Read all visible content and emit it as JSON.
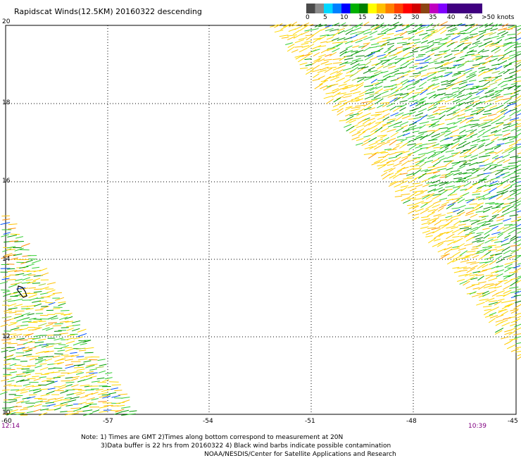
{
  "title": "Rapidscat Winds(12.5KM) 20160322 descending",
  "scale": {
    "labels": [
      "0",
      "5",
      "10",
      "15",
      "20",
      "25",
      "30",
      "35",
      "40",
      "45",
      ">50 knots"
    ],
    "colors": [
      "#4a4a4a",
      "#8c8c8c",
      "#00d8ff",
      "#0080ff",
      "#0000ff",
      "#00b000",
      "#008000",
      "#ffff00",
      "#ffc000",
      "#ff8000",
      "#ff4000",
      "#ff0000",
      "#d00000",
      "#8b4513",
      "#c000c0",
      "#8000ff",
      "#400080"
    ]
  },
  "y_labels": [
    "20",
    "18",
    "16",
    "14",
    "12",
    "10"
  ],
  "x_labels": [
    "-60",
    "-57",
    "-54",
    "-51",
    "-48",
    "-45"
  ],
  "times": {
    "left": "12:14",
    "right": "10:39"
  },
  "notes": {
    "line1": "Note:  1) Times are GMT  2)Times along bottom correspond to measurement at 20N",
    "line2": "3)Data buffer is 22 hrs from 20160322  4) Black wind barbs indicate possible contamination",
    "line3": "NOAA/NESDIS/Center for Satellite Applications and Research"
  },
  "map": {
    "lon_range": [
      -60,
      -45
    ],
    "lat_range": [
      10,
      20
    ],
    "swath_colors": [
      "#ffd700",
      "#ffc000",
      "#32cd32",
      "#00a000",
      "#008000",
      "#ff8c00",
      "#0050ff",
      "#9acd32"
    ]
  }
}
